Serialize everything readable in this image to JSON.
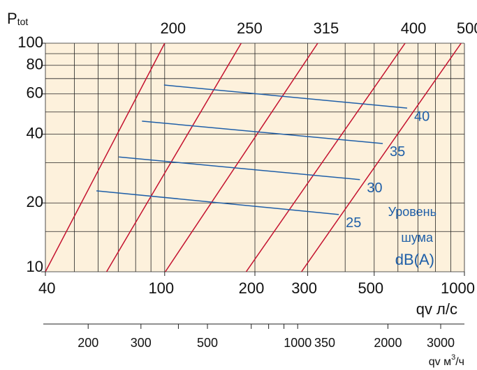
{
  "chart_data": {
    "type": "line",
    "xscale": "log",
    "yscale": "log",
    "xlim": [
      40,
      1000
    ],
    "ylim": [
      10,
      100
    ],
    "xticks": [
      40,
      100,
      200,
      300,
      500,
      1000
    ],
    "yticks": [
      10,
      20,
      40,
      60,
      80,
      100
    ],
    "xgrid": [
      40,
      50,
      60,
      70,
      80,
      90,
      100,
      200,
      300,
      400,
      500,
      600,
      700,
      800,
      900,
      1000
    ],
    "ygrid": [
      10,
      15,
      20,
      30,
      40,
      50,
      60,
      70,
      80,
      90,
      100
    ],
    "grid": true,
    "background": "#fdf1dc",
    "x_label": "qv л/с",
    "y_label": [
      "P",
      "tot"
    ],
    "series": [
      {
        "name": "200",
        "color": "#c4122f",
        "x": [
          40,
          100
        ],
        "values": [
          10,
          100
        ]
      },
      {
        "name": "250",
        "color": "#c4122f",
        "x": [
          64,
          180
        ],
        "values": [
          10,
          100
        ]
      },
      {
        "name": "315",
        "color": "#c4122f",
        "x": [
          100.5,
          324
        ],
        "values": [
          10,
          100
        ]
      },
      {
        "name": "400",
        "color": "#c4122f",
        "x": [
          187,
          634
        ],
        "values": [
          10,
          100
        ]
      },
      {
        "name": "500",
        "color": "#c4122f",
        "x": [
          286,
          975
        ],
        "values": [
          10,
          100
        ]
      }
    ],
    "noise_series": [
      {
        "name": "40",
        "color": "#1f5fa8",
        "x": [
          99.5,
          644
        ],
        "values": [
          65.6,
          52
        ]
      },
      {
        "name": "35",
        "color": "#1f5fa8",
        "x": [
          84,
          534
        ],
        "values": [
          45.6,
          36.4
        ]
      },
      {
        "name": "30",
        "color": "#1f5fa8",
        "x": [
          70.3,
          448
        ],
        "values": [
          31.8,
          25.3
        ]
      },
      {
        "name": "25",
        "color": "#1f5fa8",
        "x": [
          59.2,
          381
        ],
        "values": [
          22.6,
          17.8
        ]
      }
    ],
    "noise_title": [
      "Уровень",
      "шума",
      "dB(A)"
    ],
    "x2lim": [
      144,
      3600
    ],
    "x2ticks": [
      200,
      300,
      500,
      1000,
      2000,
      3000
    ],
    "x2minor": [
      400,
      700,
      800,
      900
    ],
    "x2_label": [
      "qv м",
      "3",
      "/ч"
    ],
    "annotations": [
      "350"
    ]
  }
}
